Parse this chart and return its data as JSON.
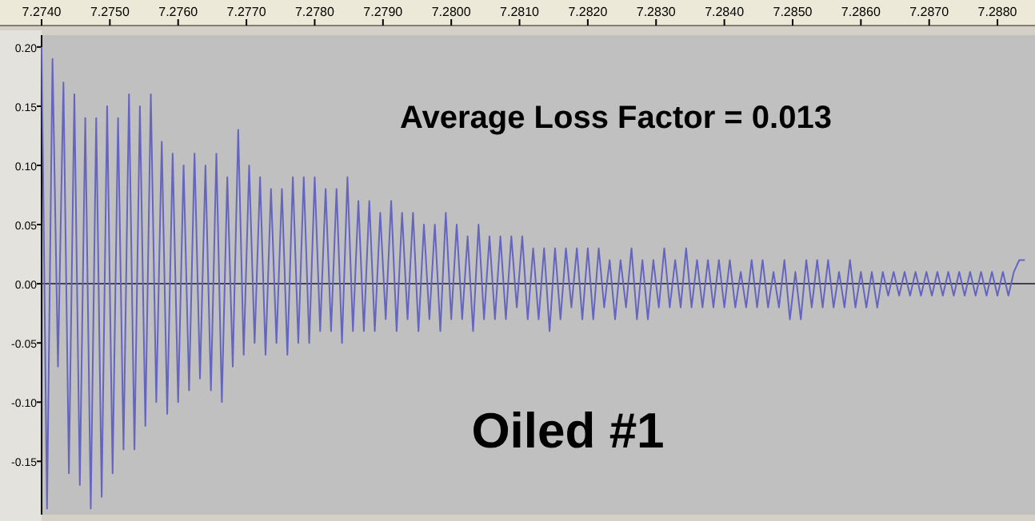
{
  "chart_data": {
    "type": "line",
    "annotations": [
      "Average Loss Factor = 0.013",
      "Oiled #1"
    ],
    "x": [
      7.274,
      7.27408,
      7.27416,
      7.27424,
      7.27432,
      7.2744,
      7.27448,
      7.27456,
      7.27464,
      7.27472,
      7.2748,
      7.27488,
      7.27496,
      7.27504,
      7.27512,
      7.2752,
      7.27528,
      7.27536,
      7.27544,
      7.27552,
      7.2756,
      7.27568,
      7.27576,
      7.27584,
      7.27592,
      7.276,
      7.27608,
      7.27616,
      7.27624,
      7.27632,
      7.2764,
      7.27648,
      7.27656,
      7.27664,
      7.27672,
      7.2768,
      7.27688,
      7.27696,
      7.27704,
      7.27712,
      7.2772,
      7.27728,
      7.27736,
      7.27744,
      7.27752,
      7.2776,
      7.27768,
      7.27776,
      7.27784,
      7.27792,
      7.278,
      7.27808,
      7.27816,
      7.27824,
      7.27832,
      7.2784,
      7.27848,
      7.27856,
      7.27864,
      7.27872,
      7.2788,
      7.27888,
      7.27896,
      7.27904,
      7.27912,
      7.2792,
      7.27928,
      7.27936,
      7.27944,
      7.27952,
      7.2796,
      7.27968,
      7.27976,
      7.27984,
      7.27992,
      7.28,
      7.28008,
      7.28016,
      7.28024,
      7.28032,
      7.2804,
      7.28048,
      7.28056,
      7.28064,
      7.28072,
      7.2808,
      7.28088,
      7.28096,
      7.28104,
      7.28112,
      7.2812,
      7.28128,
      7.28136,
      7.28144,
      7.28152,
      7.2816,
      7.28168,
      7.28176,
      7.28184,
      7.28192,
      7.282,
      7.28208,
      7.28216,
      7.28224,
      7.28232,
      7.2824,
      7.28248,
      7.28256,
      7.28264,
      7.28272,
      7.2828,
      7.28288,
      7.28296,
      7.28304,
      7.28312,
      7.2832,
      7.28328,
      7.28336,
      7.28344,
      7.28352,
      7.2836,
      7.28368,
      7.28376,
      7.28384,
      7.28392,
      7.284,
      7.28408,
      7.28416,
      7.28424,
      7.28432,
      7.2844,
      7.28448,
      7.28456,
      7.28464,
      7.28472,
      7.2848,
      7.28488,
      7.28496,
      7.28504,
      7.28512,
      7.2852,
      7.28528,
      7.28536,
      7.28544,
      7.28552,
      7.2856,
      7.28568,
      7.28576,
      7.28584,
      7.28592,
      7.286,
      7.28608,
      7.28616,
      7.28624,
      7.28632,
      7.2864,
      7.28648,
      7.28656,
      7.28664,
      7.28672,
      7.2868,
      7.28688,
      7.28696,
      7.28704,
      7.28712,
      7.2872,
      7.28728,
      7.28736,
      7.28744,
      7.28752,
      7.2876,
      7.28768,
      7.28776,
      7.28784,
      7.28792,
      7.288,
      7.28808,
      7.28816,
      7.28824,
      7.28832,
      7.2884
    ],
    "series": [
      {
        "color": "#6565c0",
        "values": [
          0.2,
          -0.19,
          0.19,
          -0.07,
          0.17,
          -0.16,
          0.16,
          -0.17,
          0.14,
          -0.19,
          0.14,
          -0.18,
          0.15,
          -0.16,
          0.14,
          -0.14,
          0.16,
          -0.14,
          0.15,
          -0.12,
          0.16,
          -0.1,
          0.12,
          -0.11,
          0.11,
          -0.1,
          0.1,
          -0.09,
          0.11,
          -0.08,
          0.1,
          -0.09,
          0.11,
          -0.1,
          0.09,
          -0.07,
          0.13,
          -0.06,
          0.1,
          -0.05,
          0.09,
          -0.06,
          0.08,
          -0.05,
          0.08,
          -0.06,
          0.09,
          -0.05,
          0.09,
          -0.05,
          0.09,
          -0.04,
          0.08,
          -0.04,
          0.08,
          -0.05,
          0.09,
          -0.04,
          0.07,
          -0.04,
          0.07,
          -0.04,
          0.06,
          -0.03,
          0.07,
          -0.04,
          0.06,
          -0.03,
          0.06,
          -0.04,
          0.05,
          -0.03,
          0.05,
          -0.04,
          0.06,
          -0.03,
          0.05,
          -0.03,
          0.04,
          -0.04,
          0.05,
          -0.03,
          0.04,
          -0.03,
          0.04,
          -0.03,
          0.04,
          -0.02,
          0.04,
          -0.03,
          0.03,
          -0.03,
          0.03,
          -0.04,
          0.03,
          -0.03,
          0.03,
          -0.02,
          0.03,
          -0.03,
          0.03,
          -0.03,
          0.03,
          -0.02,
          0.02,
          -0.03,
          0.02,
          -0.02,
          0.03,
          -0.03,
          0.02,
          -0.03,
          0.02,
          -0.02,
          0.03,
          -0.02,
          0.02,
          -0.02,
          0.03,
          -0.02,
          0.02,
          -0.02,
          0.02,
          -0.02,
          0.02,
          -0.02,
          0.02,
          -0.02,
          0.01,
          -0.02,
          0.02,
          -0.02,
          0.02,
          -0.02,
          0.01,
          -0.02,
          0.02,
          -0.03,
          0.01,
          -0.03,
          0.02,
          -0.02,
          0.02,
          -0.02,
          0.02,
          -0.02,
          0.01,
          -0.02,
          0.02,
          -0.02,
          0.01,
          -0.02,
          0.01,
          -0.02,
          0.01,
          -0.01,
          0.01,
          -0.01,
          0.01,
          -0.01,
          0.01,
          -0.01,
          0.01,
          -0.01,
          0.01,
          -0.01,
          0.01,
          -0.01,
          0.01,
          -0.01,
          0.01,
          -0.01,
          0.01,
          -0.01,
          0.01,
          -0.01,
          0.01,
          -0.01,
          0.01,
          0.02,
          0.02
        ]
      }
    ],
    "xlim": [
      7.274,
      7.28855
    ],
    "xticks": [
      {
        "value": 7.274,
        "label": "7.2740"
      },
      {
        "value": 7.275,
        "label": "7.2750"
      },
      {
        "value": 7.276,
        "label": "7.2760"
      },
      {
        "value": 7.277,
        "label": "7.2770"
      },
      {
        "value": 7.278,
        "label": "7.2780"
      },
      {
        "value": 7.279,
        "label": "7.2790"
      },
      {
        "value": 7.28,
        "label": "7.2800"
      },
      {
        "value": 7.281,
        "label": "7.2810"
      },
      {
        "value": 7.282,
        "label": "7.2820"
      },
      {
        "value": 7.283,
        "label": "7.2830"
      },
      {
        "value": 7.284,
        "label": "7.2840"
      },
      {
        "value": 7.285,
        "label": "7.2850"
      },
      {
        "value": 7.286,
        "label": "7.2860"
      },
      {
        "value": 7.287,
        "label": "7.2870"
      },
      {
        "value": 7.288,
        "label": "7.2880"
      }
    ],
    "ylim": [
      -0.195,
      0.21
    ],
    "yticks": [
      {
        "value": -0.15,
        "label": "-0.15"
      },
      {
        "value": -0.1,
        "label": "-0.10"
      },
      {
        "value": -0.05,
        "label": "-0.05"
      },
      {
        "value": 0,
        "label": "0.00"
      },
      {
        "value": 0.05,
        "label": "0.05"
      },
      {
        "value": 0.1,
        "label": "0.10"
      },
      {
        "value": 0.15,
        "label": "0.15"
      },
      {
        "value": 0.2,
        "label": "0.20"
      }
    ],
    "ref_lines": [
      {
        "axis": "y",
        "value": 0,
        "color": "#404050"
      }
    ]
  }
}
